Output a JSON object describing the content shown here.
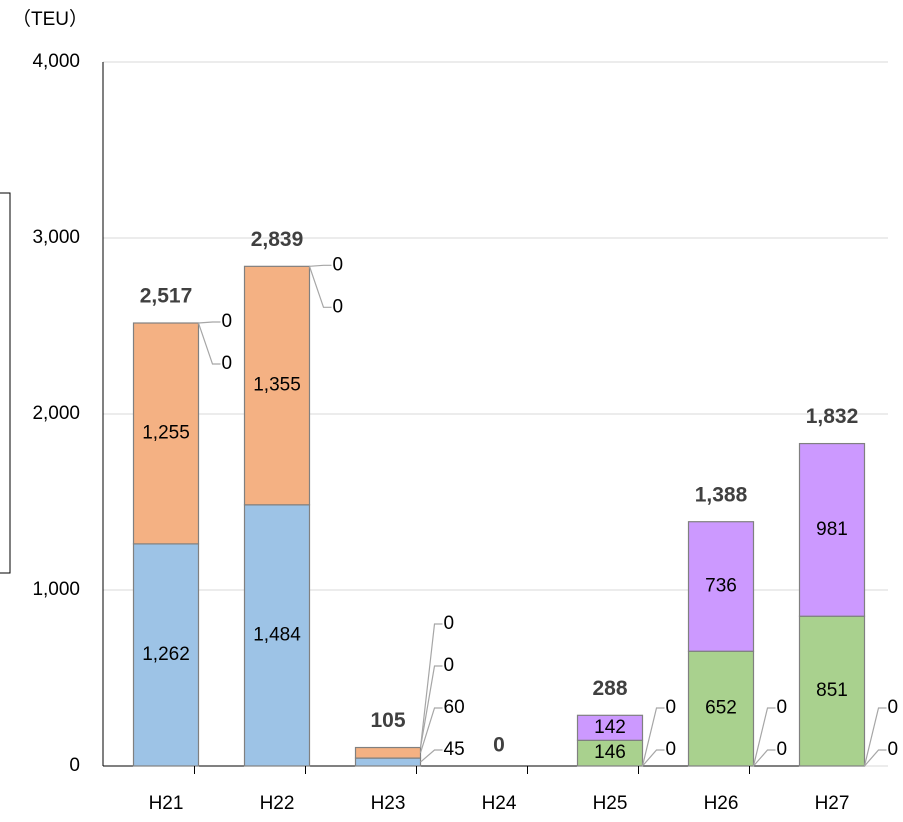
{
  "chart_data": {
    "type": "stacked_bar",
    "y_axis_label": "（TEU）",
    "categories": [
      "H21",
      "H22",
      "H23",
      "H24",
      "H25",
      "H26",
      "H27"
    ],
    "series": [
      {
        "color": "#9dc3e6",
        "values": [
          1262,
          1484,
          45,
          0,
          0,
          0,
          0
        ],
        "value_labels": [
          "1,262",
          "1,484",
          "45",
          null,
          "0",
          "0",
          "0"
        ]
      },
      {
        "color": "#f4b183",
        "values": [
          1255,
          1355,
          60,
          0,
          0,
          0,
          0
        ],
        "value_labels": [
          "1,255",
          "1,355",
          "60",
          null,
          "0",
          "0",
          "0"
        ]
      },
      {
        "color": "#a9d18e",
        "values": [
          0,
          0,
          0,
          0,
          146,
          652,
          851
        ],
        "value_labels": [
          "0",
          "0",
          "0",
          null,
          "146",
          "652",
          "851"
        ]
      },
      {
        "color": "#cc99ff",
        "values": [
          0,
          0,
          0,
          0,
          142,
          736,
          981
        ],
        "value_labels": [
          "0",
          "0",
          "0",
          null,
          "142",
          "736",
          "981"
        ]
      }
    ],
    "totals": [
      2517,
      2839,
      105,
      0,
      288,
      1388,
      1832
    ],
    "total_labels": [
      "2,517",
      "2,839",
      "105",
      "0",
      "288",
      "1,388",
      "1,832"
    ],
    "ylim": [
      0,
      4000
    ],
    "yticks": [
      0,
      {
        "value": 1000,
        "label": "1,000"
      },
      {
        "value": 2000,
        "label": "2,000"
      },
      {
        "value": 3000,
        "label": "3,000"
      },
      {
        "value": 4000,
        "label": "4,000"
      }
    ],
    "grid": true
  }
}
